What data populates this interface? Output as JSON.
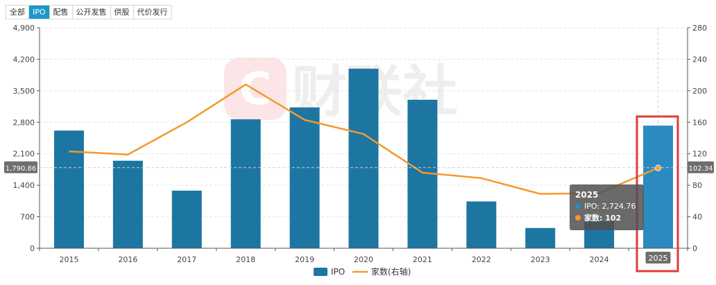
{
  "tabs": [
    {
      "label": "全部",
      "active": false
    },
    {
      "label": "IPO",
      "active": true
    },
    {
      "label": "配售",
      "active": false
    },
    {
      "label": "公开发售",
      "active": false
    },
    {
      "label": "供股",
      "active": false
    },
    {
      "label": "代价发行",
      "active": false
    }
  ],
  "colors": {
    "bar": "#1d76a2",
    "bar_highlight": "#2b8bc0",
    "line": "#f5982c",
    "highlight_box": "#e03b3b"
  },
  "chart_data": {
    "type": "bar",
    "categories": [
      "2015",
      "2016",
      "2017",
      "2018",
      "2019",
      "2020",
      "2021",
      "2022",
      "2023",
      "2024",
      "2025"
    ],
    "series": [
      {
        "name": "IPO",
        "type": "bar",
        "axis": "left",
        "values": [
          2615,
          1945,
          1280,
          2865,
          3130,
          3990,
          3300,
          1040,
          450,
          600,
          2724.76
        ]
      },
      {
        "name": "家数(右轴)",
        "type": "line",
        "axis": "right",
        "values": [
          123,
          119,
          160,
          208,
          163,
          145,
          96,
          89,
          69,
          70,
          102
        ]
      }
    ],
    "y_left": {
      "min": 0,
      "max": 4900,
      "ticks": [
        "0",
        "700",
        "1,400",
        "2,100",
        "2,800",
        "3,500",
        "4,200",
        "4,900"
      ]
    },
    "y_right": {
      "min": 0,
      "max": 280,
      "ticks": [
        "0",
        "40",
        "80",
        "120",
        "160",
        "200",
        "240",
        "280"
      ]
    },
    "crosshair": {
      "category": "2025",
      "left_value": "1,790.86",
      "right_value": "102.34"
    },
    "tooltip": {
      "title": "2025",
      "rows": [
        "IPO: 2,724.76",
        "家数: 102"
      ]
    },
    "legend": [
      "IPO",
      "家数(右轴)"
    ],
    "grid": true,
    "legend_position": "bottom-center"
  }
}
